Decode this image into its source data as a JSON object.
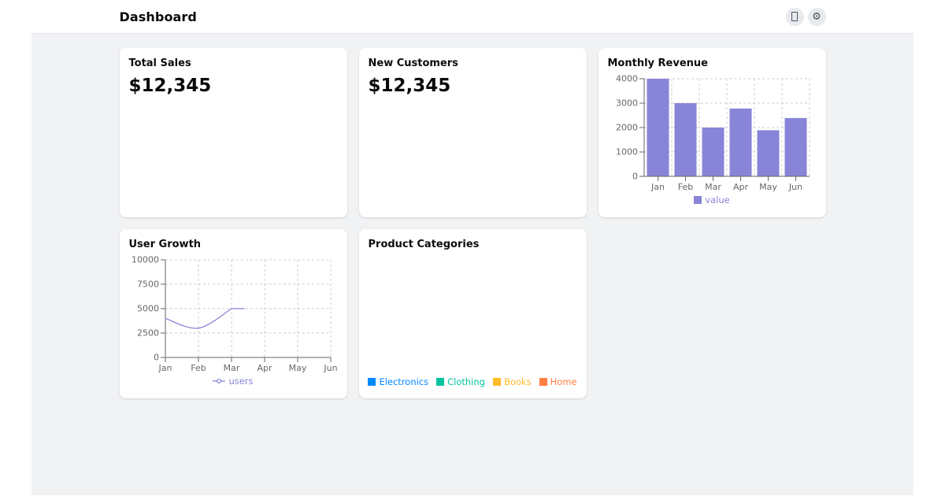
{
  "header": {
    "title": "Dashboard",
    "actions": [
      {
        "name": "notifications",
        "icon": "blank-glyph-box"
      },
      {
        "name": "settings",
        "icon": "gear"
      }
    ]
  },
  "stat_cards": [
    {
      "title": "Total Sales",
      "value": "$12,345"
    },
    {
      "title": "New Customers",
      "value": "$12,345"
    }
  ],
  "chart_data": [
    {
      "id": "monthly-revenue",
      "type": "bar",
      "title": "Monthly Revenue",
      "categories": [
        "Jan",
        "Feb",
        "Mar",
        "Apr",
        "May",
        "Jun"
      ],
      "values": [
        4000,
        3000,
        2000,
        2780,
        1890,
        2390
      ],
      "ylim": [
        0,
        4000
      ],
      "yticks": [
        0,
        1000,
        2000,
        3000,
        4000
      ],
      "bar_color": "#8884d8",
      "axis_color": "#666666",
      "grid": "dashed",
      "grid_color": "#cccccc",
      "legend": [
        {
          "label": "value",
          "color": "#8884d8",
          "icon": "square"
        }
      ],
      "legend_position": "bottom-center"
    },
    {
      "id": "user-growth",
      "type": "line",
      "title": "User Growth",
      "categories": [
        "Jan",
        "Feb",
        "Mar",
        "Apr",
        "May",
        "Jun"
      ],
      "values": [
        4000,
        3000,
        5000,
        null,
        null,
        null
      ],
      "partial_line_end_index": 2.4,
      "ylim": [
        0,
        10000
      ],
      "yticks": [
        0,
        2500,
        5000,
        7500,
        10000
      ],
      "line_color": "#8884d8",
      "axis_color": "#666666",
      "grid": "dashed",
      "grid_color": "#cccccc",
      "legend": [
        {
          "label": "users",
          "color": "#8884d8",
          "icon": "line"
        }
      ],
      "legend_position": "bottom-center"
    },
    {
      "id": "product-categories",
      "type": "pie",
      "title": "Product Categories",
      "slices_visible": false,
      "legend": [
        {
          "label": "Electronics",
          "color": "#0088FE",
          "icon": "square"
        },
        {
          "label": "Clothing",
          "color": "#00C49F",
          "icon": "square"
        },
        {
          "label": "Books",
          "color": "#FFBB28",
          "icon": "square"
        },
        {
          "label": "Home",
          "color": "#FF8042",
          "icon": "square"
        }
      ],
      "legend_position": "bottom-center"
    }
  ]
}
